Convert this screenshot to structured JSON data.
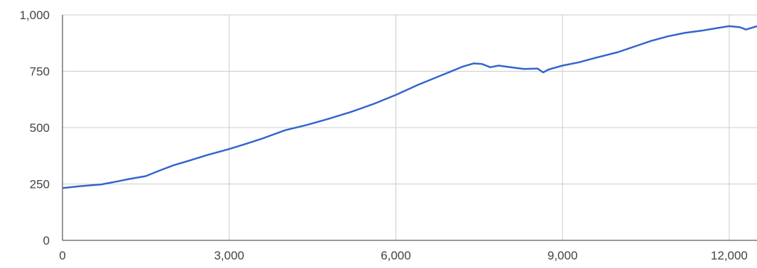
{
  "chart_data": {
    "type": "line",
    "title": "",
    "xlabel": "",
    "ylabel": "",
    "xlim": [
      0,
      12500
    ],
    "ylim": [
      0,
      1000
    ],
    "x_ticks": [
      0,
      3000,
      6000,
      9000,
      12000
    ],
    "x_tick_labels": [
      "0",
      "3,000",
      "6,000",
      "9,000",
      "12,000"
    ],
    "y_ticks": [
      0,
      250,
      500,
      750,
      1000
    ],
    "y_tick_labels": [
      "0",
      "250",
      "500",
      "750",
      "1,000"
    ],
    "grid": true,
    "legend": "none",
    "series": [
      {
        "color": "#3366cc",
        "x": [
          0,
          300,
          700,
          1000,
          1200,
          1500,
          1700,
          2000,
          2300,
          2600,
          3000,
          3300,
          3600,
          4000,
          4400,
          4800,
          5200,
          5600,
          6000,
          6400,
          6800,
          7200,
          7400,
          7550,
          7700,
          7850,
          8000,
          8300,
          8550,
          8650,
          8750,
          9000,
          9300,
          9600,
          10000,
          10300,
          10600,
          10900,
          11200,
          11500,
          11800,
          12000,
          12200,
          12300,
          12500
        ],
        "y": [
          232,
          240,
          248,
          262,
          272,
          285,
          305,
          333,
          355,
          378,
          405,
          428,
          452,
          488,
          512,
          540,
          570,
          605,
          645,
          690,
          730,
          770,
          785,
          782,
          768,
          775,
          770,
          760,
          762,
          745,
          758,
          775,
          790,
          810,
          835,
          860,
          885,
          905,
          920,
          930,
          942,
          950,
          945,
          935,
          950
        ]
      }
    ]
  }
}
